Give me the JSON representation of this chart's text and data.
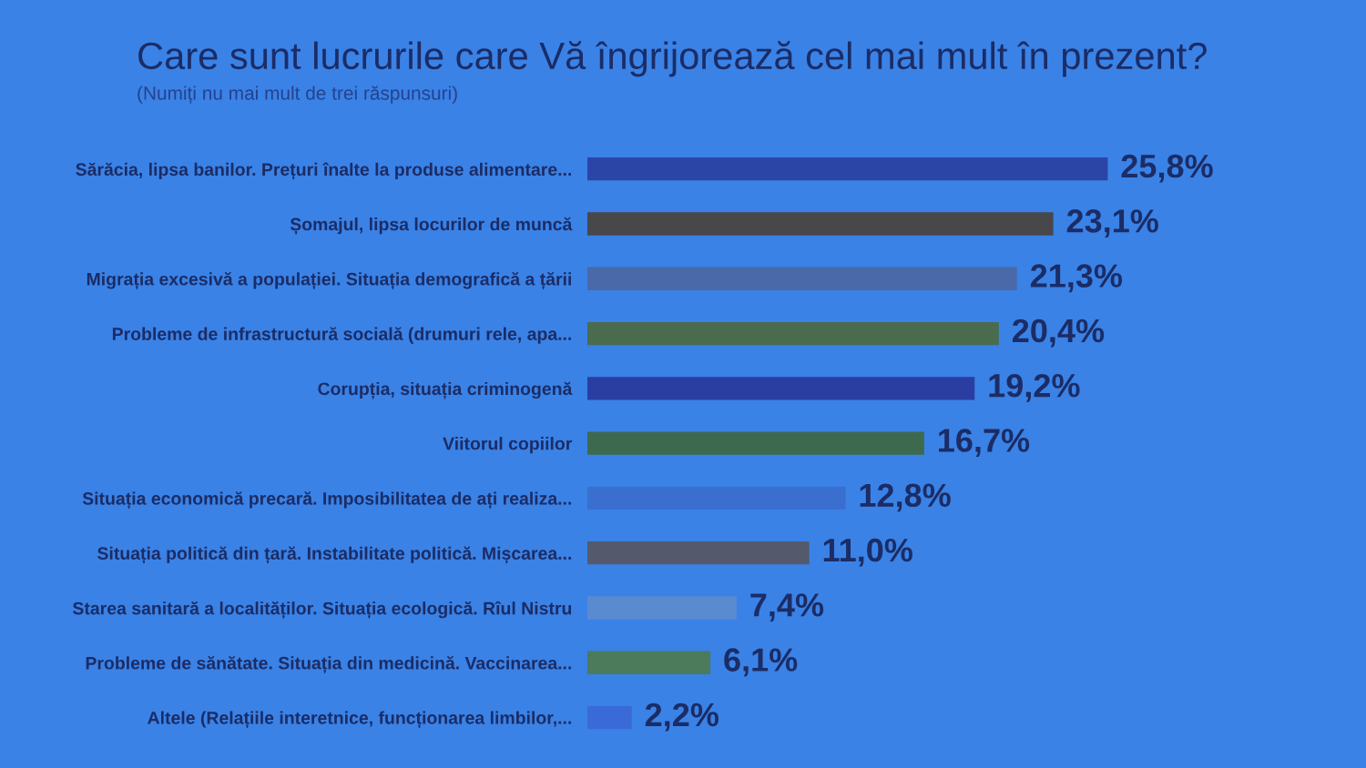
{
  "chart_data": {
    "type": "bar",
    "orientation": "horizontal",
    "title": "Care sunt lucrurile care Vă îngrijorează cel mai mult în prezent?",
    "subtitle": "(Numiți nu mai mult de trei răspunsuri)",
    "categories": [
      "Sărăcia, lipsa banilor. Prețuri înalte la produse alimentare...",
      "Șomajul, lipsa locurilor de muncă",
      "Migrația excesivă a populației. Situația demografică a țării",
      "Probleme de infrastructură socială (drumuri rele, apa...",
      "Corupția, situația criminogenă",
      "Viitorul copiilor",
      "Situația economică precară. Imposibilitatea de ați realiza...",
      "Situația politică din țară. Instabilitate politică. Mișcarea...",
      "Starea sanitară a localităților. Situația ecologică. Rîul Nistru",
      "Probleme de sănătate. Situația din medicină. Vaccinarea...",
      "Altele (Relațiile interetnice, funcționarea limbilor,..."
    ],
    "values": [
      25.8,
      23.1,
      21.3,
      20.4,
      19.2,
      16.7,
      12.8,
      11.0,
      7.4,
      6.1,
      2.2
    ],
    "colors": [
      "#2b45a6",
      "#48474a",
      "#4a69a8",
      "#4b6b4f",
      "#2a3ea2",
      "#3d6a4e",
      "#3a6fd0",
      "#545a6c",
      "#5a8ad0",
      "#4b7b5a",
      "#3a6ad8"
    ],
    "value_labels": [
      "25,8%",
      "23,1%",
      "21,3%",
      "20,4%",
      "19,2%",
      "16,7%",
      "12,8%",
      "11,0%",
      "7,4%",
      "6,1%",
      "2,2%"
    ],
    "tick_labels": "y",
    "grid": false,
    "legend": false
  }
}
